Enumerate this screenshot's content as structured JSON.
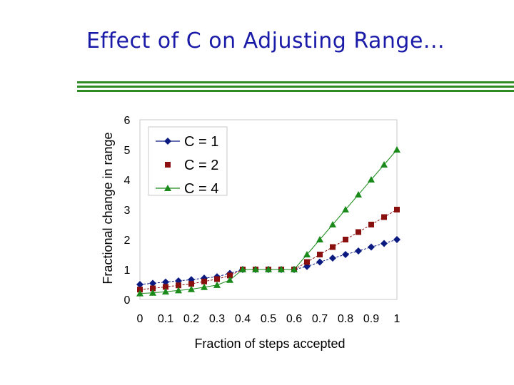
{
  "slide": {
    "title": "Effect of C on Adjusting Range..."
  },
  "chart_data": {
    "type": "line",
    "title": "",
    "xlabel": "Fraction of steps accepted",
    "ylabel": "Fractional change in range",
    "xlim": [
      0,
      1
    ],
    "ylim": [
      0,
      6
    ],
    "x_ticks": [
      "0",
      "0.1",
      "0.2",
      "0.3",
      "0.4",
      "0.5",
      "0.6",
      "0.7",
      "0.8",
      "0.9",
      "1"
    ],
    "y_ticks": [
      "0",
      "1",
      "2",
      "3",
      "4",
      "5",
      "6"
    ],
    "x": [
      0,
      0.05,
      0.1,
      0.15,
      0.2,
      0.25,
      0.3,
      0.35,
      0.4,
      0.45,
      0.5,
      0.55,
      0.6,
      0.65,
      0.7,
      0.75,
      0.8,
      0.85,
      0.9,
      0.95,
      1
    ],
    "series": [
      {
        "name": "C = 1",
        "marker": "diamond",
        "color": "#0a1a80",
        "values": [
          0.5,
          0.54,
          0.58,
          0.62,
          0.66,
          0.71,
          0.76,
          0.87,
          1,
          1,
          1,
          1,
          1,
          1.1,
          1.25,
          1.38,
          1.5,
          1.62,
          1.75,
          1.87,
          2
        ]
      },
      {
        "name": "C = 2",
        "marker": "square",
        "color": "#8a1010",
        "values": [
          0.33,
          0.37,
          0.42,
          0.47,
          0.52,
          0.6,
          0.68,
          0.8,
          1,
          1,
          1,
          1,
          1,
          1.25,
          1.5,
          1.75,
          2,
          2.25,
          2.5,
          2.75,
          3
        ]
      },
      {
        "name": "C = 4",
        "marker": "triangle",
        "color": "#1a8a1a",
        "values": [
          0.2,
          0.22,
          0.26,
          0.3,
          0.34,
          0.41,
          0.48,
          0.65,
          1,
          1,
          1,
          1,
          1,
          1.5,
          2,
          2.5,
          3,
          3.5,
          4,
          4.5,
          5
        ]
      }
    ],
    "grid": false,
    "legend": "top-left"
  }
}
